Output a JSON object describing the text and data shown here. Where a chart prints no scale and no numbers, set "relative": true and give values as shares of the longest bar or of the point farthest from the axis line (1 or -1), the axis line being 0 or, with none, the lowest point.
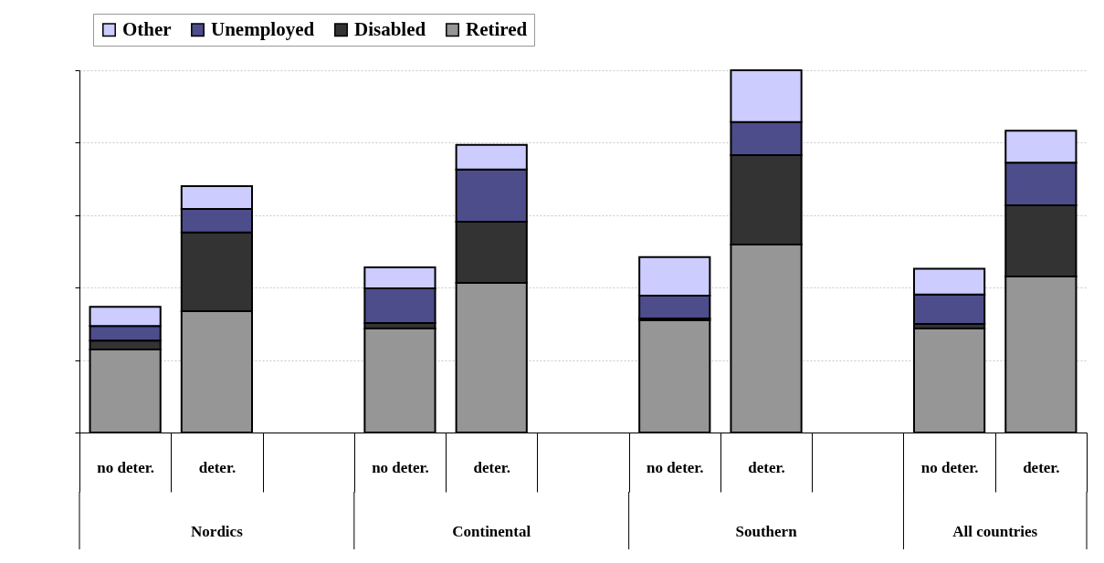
{
  "chart_data": {
    "type": "bar",
    "stacked": true,
    "relative": true,
    "grid": "y",
    "legend": "top left",
    "categories": [
      "no deter.",
      "deter.",
      null,
      "no deter.",
      "deter.",
      null,
      "no deter.",
      "deter.",
      null,
      "no deter.",
      "deter."
    ],
    "series": [
      {
        "name": "Retired",
        "color": "#969696",
        "values": [
          0.229,
          0.335,
          null,
          0.287,
          0.413,
          null,
          0.31,
          0.519,
          null,
          0.287,
          0.431
        ]
      },
      {
        "name": "Disabled",
        "color": "#333333",
        "values": [
          0.025,
          0.217,
          null,
          0.015,
          0.169,
          null,
          0.005,
          0.247,
          null,
          0.013,
          0.196
        ]
      },
      {
        "name": "Unemployed",
        "color": "#4d4d8c",
        "values": [
          0.04,
          0.065,
          null,
          0.096,
          0.144,
          null,
          0.063,
          0.091,
          null,
          0.081,
          0.118
        ]
      },
      {
        "name": "Other",
        "color": "#ccccff",
        "values": [
          0.053,
          0.063,
          null,
          0.058,
          0.068,
          null,
          0.106,
          0.143,
          null,
          0.071,
          0.088
        ]
      }
    ],
    "annotations": [
      "Nordics",
      "Continental",
      "Southern",
      "All countries"
    ]
  }
}
